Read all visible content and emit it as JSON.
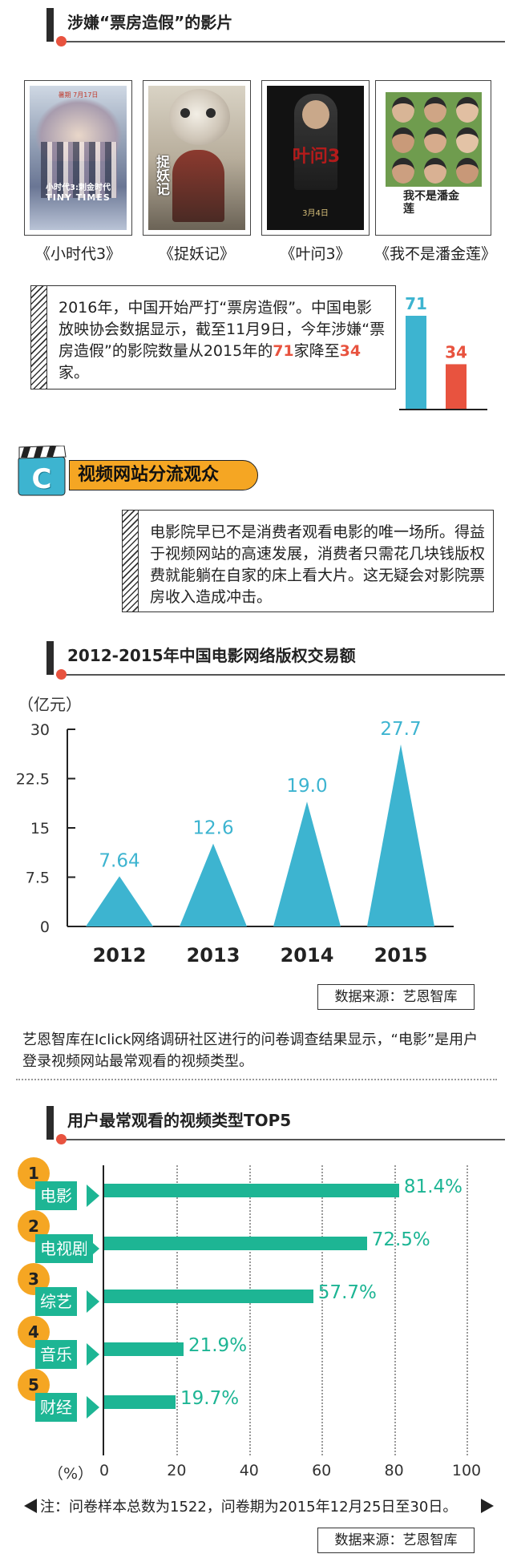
{
  "section1": {
    "title": "涉嫌“票房造假”的影片"
  },
  "films": [
    {
      "caption": "《小时代3》",
      "poster_title": "小时代3:刺金时代",
      "poster_sub": "TINY TIMES",
      "poster_tag": "暑期 7月17日"
    },
    {
      "caption": "《捉妖记》",
      "poster_title": "捉妖记",
      "poster_sub": "",
      "poster_tag": ""
    },
    {
      "caption": "《叶问3》",
      "poster_title": "叶问3",
      "poster_sub": "3月4日",
      "poster_tag": ""
    },
    {
      "caption": "《我不是潘金莲》",
      "poster_title": "我不是潘金莲",
      "poster_sub": "",
      "poster_tag": ""
    }
  ],
  "note1": {
    "text_before": "2016年，中国开始严打“票房造假”。中国电影放映协会数据显示，截至11月9日，今年涉嫌“票房造假”的影院数量从2015年的",
    "value_a": "71",
    "text_mid": "家降至",
    "value_b": "34",
    "text_after": "家。"
  },
  "mini_bar": {
    "values": [
      71,
      34
    ],
    "labels": [
      "71",
      "34"
    ],
    "colors": [
      "#3db4d0",
      "#e8533f"
    ]
  },
  "section2": {
    "badge_letter": "C",
    "title": "视频网站分流观众"
  },
  "note2": {
    "text": "电影院早已不是消费者观看电影的唯一场所。得益于视频网站的高速发展，消费者只需花几块钱版权费就能躺在自家的床上看大片。这无疑会对影院票房收入造成冲击。"
  },
  "section3": {
    "title": "2012-2015年中国电影网络版权交易额"
  },
  "chart_data": [
    {
      "type": "bar",
      "title": "2012-2015年中国电影网络版权交易额",
      "ylabel": "（亿元）",
      "categories": [
        "2012",
        "2013",
        "2014",
        "2015"
      ],
      "values": [
        7.64,
        12.6,
        19.0,
        27.7
      ],
      "value_labels": [
        "7.64",
        "12.6",
        "19.0",
        "27.7"
      ],
      "ylim": [
        0,
        30
      ],
      "yticks": [
        "0",
        "7.5",
        "15",
        "22.5",
        "30"
      ],
      "ytick_values": [
        0,
        7.5,
        15,
        22.5,
        30
      ],
      "mark_shape": "triangle",
      "color": "#3db4d0"
    },
    {
      "type": "bar",
      "orientation": "horizontal",
      "title": "用户最常观看的视频类型TOP5",
      "xlabel": "（%）",
      "categories": [
        "电影",
        "电视剧",
        "综艺",
        "音乐",
        "财经"
      ],
      "ranks": [
        "1",
        "2",
        "3",
        "4",
        "5"
      ],
      "values": [
        81.4,
        72.5,
        57.7,
        21.9,
        19.7
      ],
      "value_labels": [
        "81.4%",
        "72.5%",
        "57.7%",
        "21.9%",
        "19.7%"
      ],
      "xlim": [
        0,
        100
      ],
      "xticks": [
        "0",
        "20",
        "40",
        "60",
        "80",
        "100"
      ],
      "xtick_values": [
        0,
        20,
        40,
        60,
        80,
        100
      ],
      "grid": "vertical dotted",
      "color": "#1db594"
    }
  ],
  "source1": "数据来源：艺恩智库",
  "paragraph": "艺恩智库在Iclick网络调研社区进行的问卷调查结果显示，“电影”是用户登录视频网站最常观看的视频类型。",
  "section4": {
    "title": "用户最常观看的视频类型TOP5"
  },
  "footnote": "注：问卷样本总数为1522，问卷期为2015年12月25日至30日。",
  "source2": "数据来源：艺恩智库"
}
